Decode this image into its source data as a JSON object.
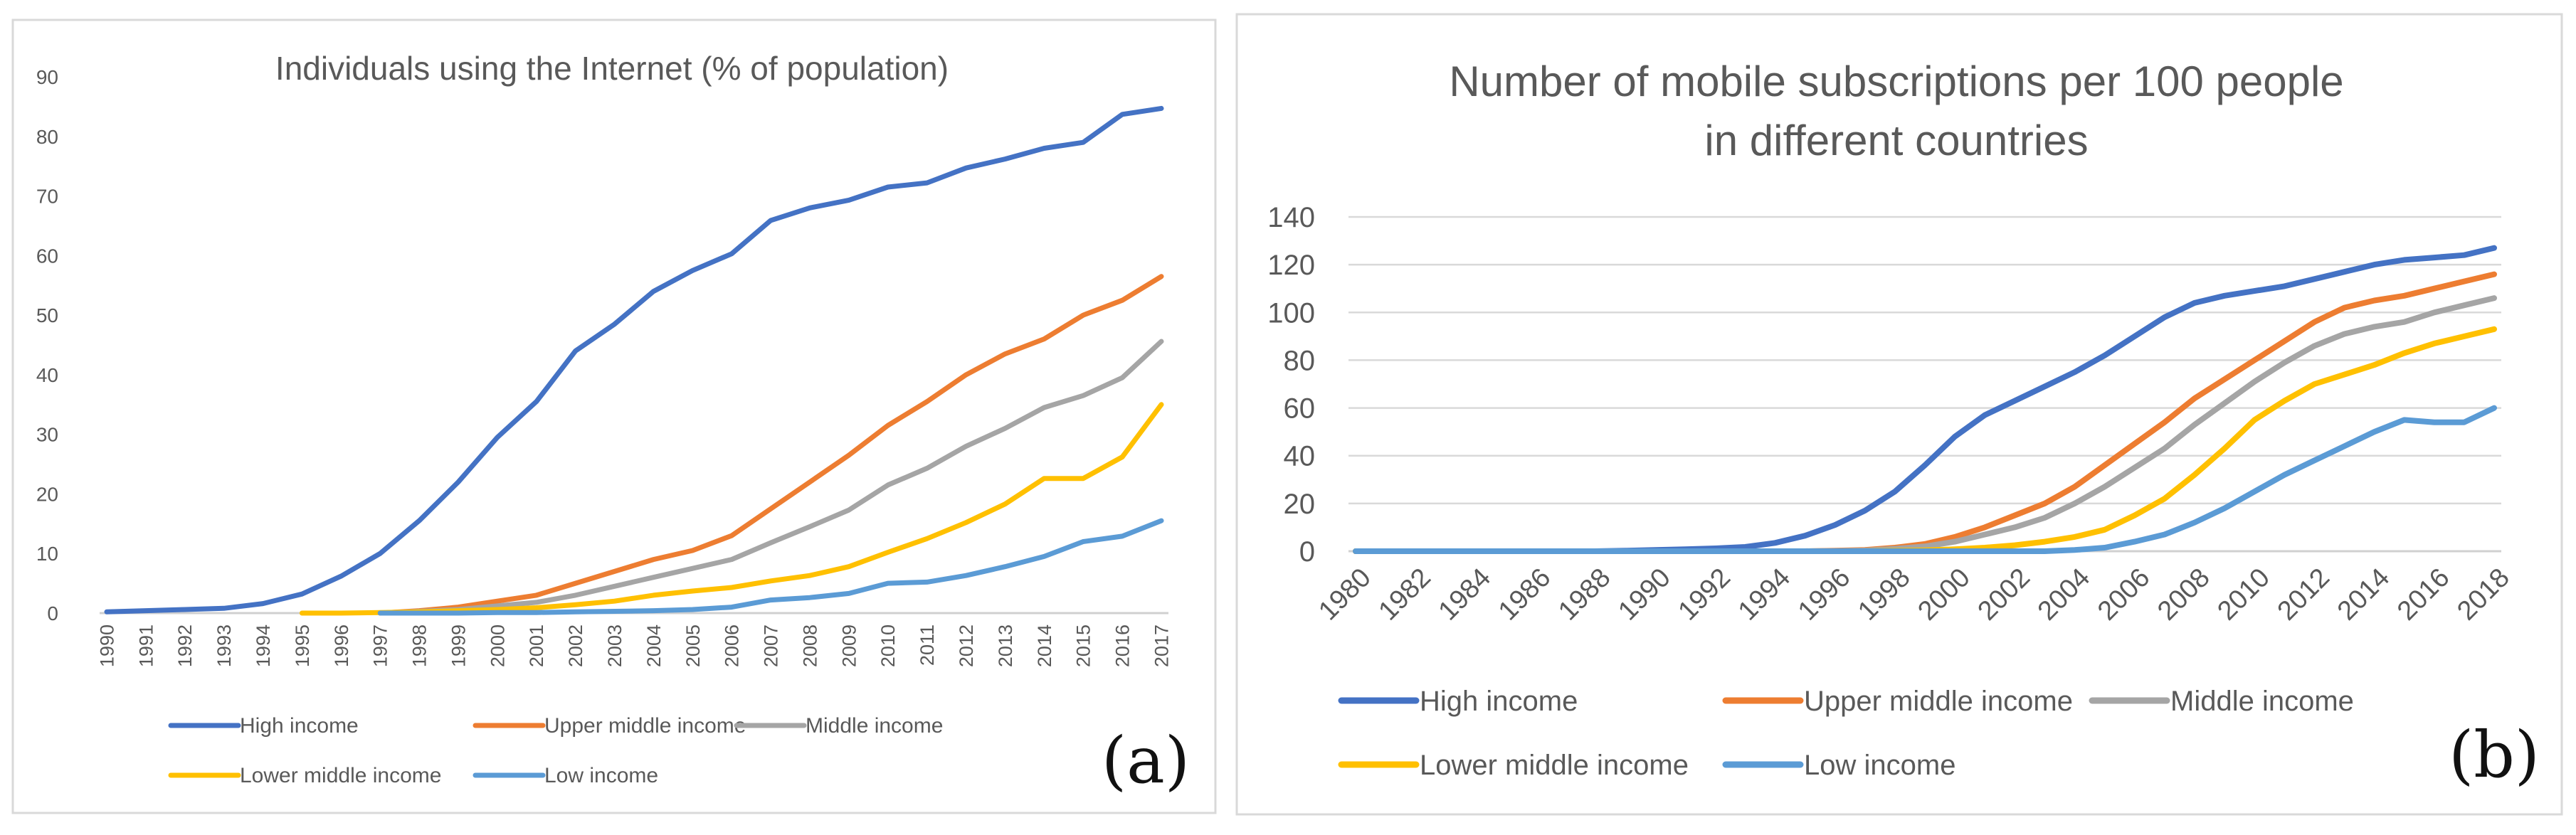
{
  "chart_data": [
    {
      "type": "line",
      "panel_label": "(a)",
      "title": "Individuals using the Internet (% of population)",
      "xlabel": "",
      "ylabel": "",
      "ylim": [
        0,
        90
      ],
      "yticks": [
        0,
        10,
        20,
        30,
        40,
        50,
        60,
        70,
        80,
        90
      ],
      "grid": false,
      "legend": "bottom",
      "categories": [
        "1990",
        "1991",
        "1992",
        "1993",
        "1994",
        "1995",
        "1996",
        "1997",
        "1998",
        "1999",
        "2000",
        "2001",
        "2002",
        "2003",
        "2004",
        "2005",
        "2006",
        "2007",
        "2008",
        "2009",
        "2010",
        "2011",
        "2012",
        "2013",
        "2014",
        "2015",
        "2016",
        "2017"
      ],
      "series": [
        {
          "name": "High income",
          "color": "#4472C4",
          "values": [
            0.2,
            0.4,
            0.6,
            0.8,
            1.6,
            3.2,
            6.2,
            10.0,
            15.5,
            22.0,
            29.5,
            35.5,
            44.0,
            48.5,
            54.0,
            57.5,
            60.3,
            65.9,
            68.0,
            69.3,
            71.5,
            72.2,
            74.7,
            76.2,
            78.0,
            79.0,
            83.7,
            84.7
          ]
        },
        {
          "name": "Upper middle income",
          "color": "#ED7D31",
          "values": [
            null,
            null,
            null,
            null,
            null,
            null,
            null,
            0.0,
            0.4,
            1.0,
            2.0,
            3.0,
            5.0,
            7.0,
            9.0,
            10.5,
            13.0,
            17.5,
            22.0,
            26.5,
            31.5,
            35.5,
            40.0,
            43.5,
            46.0,
            50.0,
            52.5,
            56.5
          ]
        },
        {
          "name": "Middle income",
          "color": "#A5A5A5",
          "values": [
            null,
            null,
            null,
            null,
            null,
            null,
            null,
            0.0,
            0.3,
            0.6,
            1.2,
            1.8,
            3.0,
            4.5,
            6.0,
            7.5,
            9.0,
            11.8,
            14.5,
            17.3,
            21.5,
            24.3,
            28.0,
            31.0,
            34.5,
            36.5,
            39.5,
            45.6
          ]
        },
        {
          "name": "Lower middle income",
          "color": "#FFC000",
          "values": [
            null,
            null,
            null,
            null,
            null,
            0.0,
            0.0,
            0.1,
            0.2,
            0.4,
            0.6,
            0.9,
            1.4,
            2.0,
            3.0,
            3.7,
            4.3,
            5.4,
            6.3,
            7.8,
            10.2,
            12.5,
            15.2,
            18.3,
            22.6,
            22.6,
            26.2,
            35.0
          ]
        },
        {
          "name": "Low income",
          "color": "#5B9BD5",
          "values": [
            null,
            null,
            null,
            null,
            null,
            null,
            null,
            0.0,
            0.0,
            0.0,
            0.1,
            0.1,
            0.2,
            0.3,
            0.4,
            0.6,
            1.0,
            2.2,
            2.6,
            3.3,
            5.0,
            5.2,
            6.3,
            7.8,
            9.5,
            12.0,
            12.9,
            15.5
          ]
        }
      ]
    },
    {
      "type": "line",
      "panel_label": "(b)",
      "title": [
        "Number of mobile subscriptions per 100 people",
        "in different countries"
      ],
      "xlabel": "",
      "ylabel": "",
      "ylim": [
        0,
        140
      ],
      "yticks": [
        0,
        20,
        40,
        60,
        80,
        100,
        120,
        140
      ],
      "grid": true,
      "legend": "bottom",
      "categories": [
        "1980",
        "1981",
        "1982",
        "1983",
        "1984",
        "1985",
        "1986",
        "1987",
        "1988",
        "1989",
        "1990",
        "1991",
        "1992",
        "1993",
        "1994",
        "1995",
        "1996",
        "1997",
        "1998",
        "1999",
        "2000",
        "2001",
        "2002",
        "2003",
        "2004",
        "2005",
        "2006",
        "2007",
        "2008",
        "2009",
        "2010",
        "2011",
        "2012",
        "2013",
        "2014",
        "2015",
        "2016",
        "2017",
        "2018"
      ],
      "tick_labels": [
        "1980",
        "1982",
        "1984",
        "1986",
        "1988",
        "1990",
        "1992",
        "1994",
        "1996",
        "1998",
        "2000",
        "2002",
        "2004",
        "2006",
        "2008",
        "2010",
        "2012",
        "2014",
        "2016",
        "2018"
      ],
      "series": [
        {
          "name": "High income",
          "color": "#4472C4",
          "values": [
            0,
            0,
            0,
            0,
            0,
            0,
            0,
            0,
            0,
            0.2,
            0.5,
            0.8,
            1.2,
            1.8,
            3.5,
            6.5,
            11,
            17,
            25,
            36,
            48,
            57,
            63,
            69,
            75,
            82,
            90,
            98,
            104,
            107,
            109,
            111,
            114,
            117,
            120,
            122,
            123,
            124,
            127
          ]
        },
        {
          "name": "Upper middle income",
          "color": "#ED7D31",
          "values": [
            0,
            0,
            0,
            0,
            0,
            0,
            0,
            0,
            0,
            0,
            0,
            0,
            0,
            0,
            0,
            0,
            0.2,
            0.5,
            1.5,
            3,
            6,
            10,
            15,
            20,
            27,
            36,
            45,
            54,
            64,
            72,
            80,
            88,
            96,
            102,
            105,
            107,
            110,
            113,
            116
          ]
        },
        {
          "name": "Middle income",
          "color": "#A5A5A5",
          "values": [
            0,
            0,
            0,
            0,
            0,
            0,
            0,
            0,
            0,
            0,
            0,
            0,
            0,
            0,
            0,
            0,
            0.1,
            0.3,
            1,
            2,
            4,
            7,
            10,
            14,
            20,
            27,
            35,
            43,
            53,
            62,
            71,
            79,
            86,
            91,
            94,
            96,
            100,
            103,
            106
          ]
        },
        {
          "name": "Lower middle income",
          "color": "#FFC000",
          "values": [
            0,
            0,
            0,
            0,
            0,
            0,
            0,
            0,
            0,
            0,
            0,
            0,
            0,
            0,
            0,
            0,
            0,
            0,
            0.2,
            0.4,
            0.8,
            1.5,
            2.5,
            4,
            6,
            9,
            15,
            22,
            32,
            43,
            55,
            63,
            70,
            74,
            78,
            83,
            87,
            90,
            93
          ]
        },
        {
          "name": "Low income",
          "color": "#5B9BD5",
          "values": [
            0,
            0,
            0,
            0,
            0,
            0,
            0,
            0,
            0,
            0,
            0,
            0,
            0,
            0,
            0,
            0,
            0,
            0,
            0,
            0,
            0,
            0,
            0,
            0,
            0.5,
            1.5,
            4,
            7,
            12,
            18,
            25,
            32,
            38,
            44,
            50,
            55,
            54,
            54,
            60
          ]
        }
      ]
    }
  ]
}
